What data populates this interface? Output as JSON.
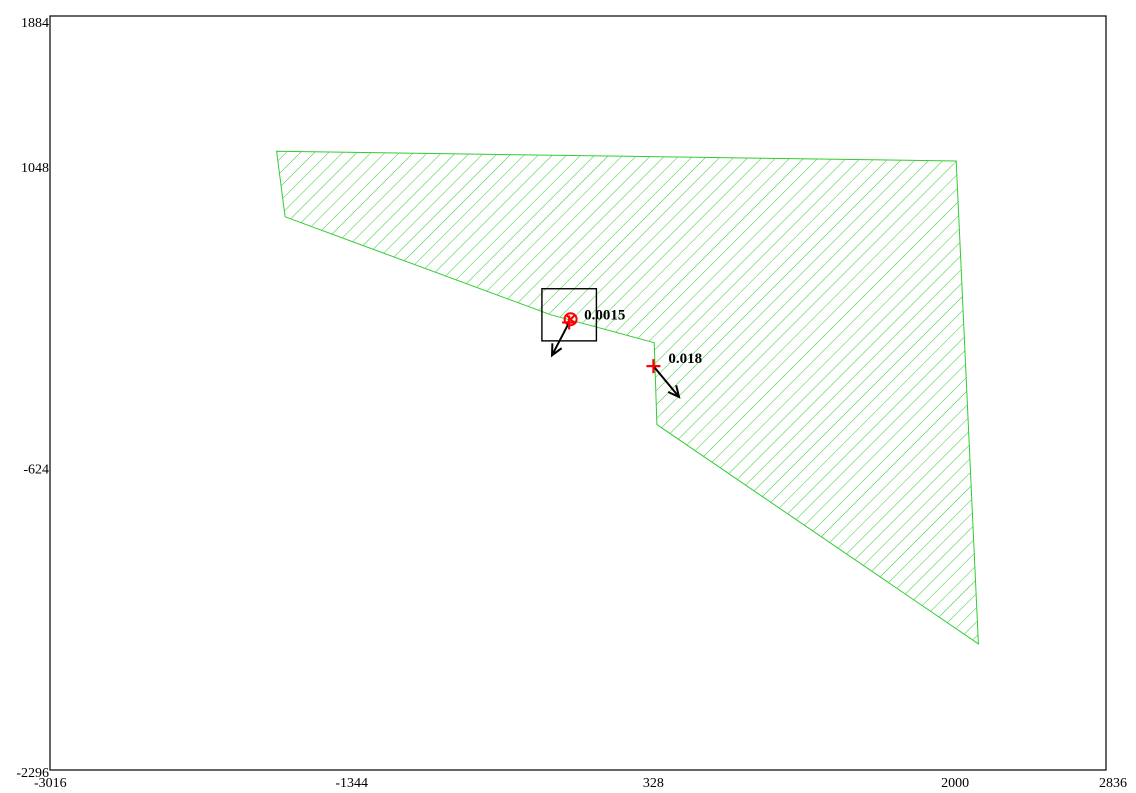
{
  "chart_data": {
    "type": "scatter",
    "title": "",
    "xlabel": "",
    "ylabel": "",
    "xlim": [
      -3016,
      2836
    ],
    "ylim": [
      -2296,
      1884
    ],
    "x_ticks": [
      -3016,
      -1344,
      328,
      2000,
      2836
    ],
    "y_ticks": [
      -2296,
      -624,
      1048,
      1884
    ],
    "region": {
      "fill": "hatched",
      "color": "#33cc33",
      "polygon": [
        [
          -1760,
          1134
        ],
        [
          2006,
          1080
        ],
        [
          2129,
          -1597
        ],
        [
          347,
          -381
        ],
        [
          332,
          73
        ],
        [
          -242,
          228
        ],
        [
          -1713,
          771
        ]
      ]
    },
    "inset_box": {
      "x": [
        -290,
        12
      ],
      "y": [
        83,
        372
      ]
    },
    "markers": [
      {
        "x": -131,
        "y": 203,
        "symbol": "circle-cross",
        "color": "#ff0000"
      },
      {
        "x": -139,
        "y": 185,
        "symbol": "cross",
        "color": "#ff0000",
        "label": "0.0015",
        "arrow_to": [
          -234,
          3
        ]
      },
      {
        "x": 328,
        "y": -57,
        "symbol": "cross",
        "color": "#ff0000",
        "label": "0.018",
        "arrow_to": [
          470,
          -228
        ]
      }
    ]
  }
}
